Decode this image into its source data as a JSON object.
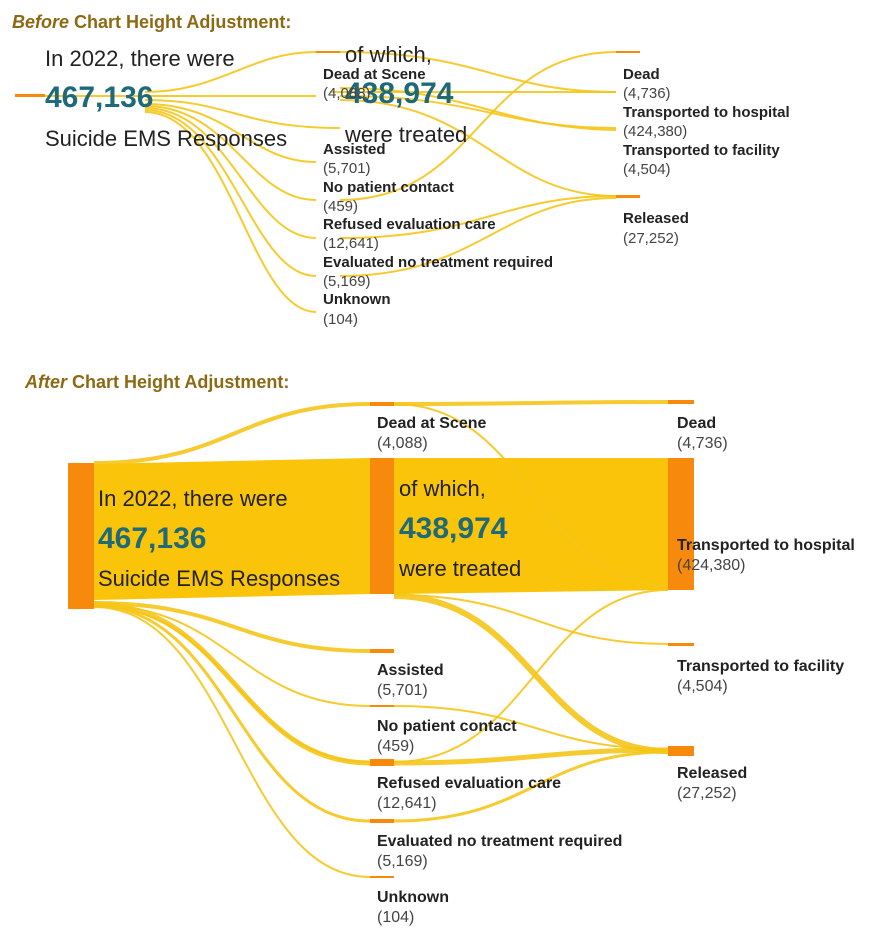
{
  "colors": {
    "node": "#f7890c",
    "link": "#f5c518",
    "band": "#f9c40a",
    "title": "#8c6a14",
    "big_number": "#1e6a78"
  },
  "before": {
    "title_prefix": "Before",
    "title_suffix": " Chart Height Adjustment:",
    "intro_line1": "In 2022, there were",
    "intro_number": "467,136",
    "intro_line3": "Suicide EMS Responses",
    "treated_line1": "of which,",
    "treated_number": "438,974",
    "treated_line3": "were treated"
  },
  "after": {
    "title_prefix": "After",
    "title_suffix": " Chart Height Adjustment:",
    "intro_line1": "In 2022, there were",
    "intro_number": "467,136",
    "intro_line3": "Suicide EMS Responses",
    "treated_line1": "of which,",
    "treated_number": "438,974",
    "treated_line3": "were treated"
  },
  "nodes": {
    "dead_at_scene": {
      "label": "Dead at Scene",
      "value": "(4,088)"
    },
    "assisted": {
      "label": "Assisted",
      "value": "(5,701)"
    },
    "no_patient_contact": {
      "label": "No patient contact",
      "value": "(459)"
    },
    "refused_evaluation_care": {
      "label": "Refused evaluation care",
      "value": "(12,641)"
    },
    "evaluated_no_treatment": {
      "label": "Evaluated no treatment required",
      "value": "(5,169)"
    },
    "unknown": {
      "label": "Unknown",
      "value": "(104)"
    },
    "dead": {
      "label": "Dead",
      "value": "(4,736)"
    },
    "transported_hospital": {
      "label": "Transported to hospital",
      "value": "(424,380)"
    },
    "transported_facility": {
      "label": "Transported to facility",
      "value": "(4,504)"
    },
    "released": {
      "label": "Released",
      "value": "(27,252)"
    }
  }
}
